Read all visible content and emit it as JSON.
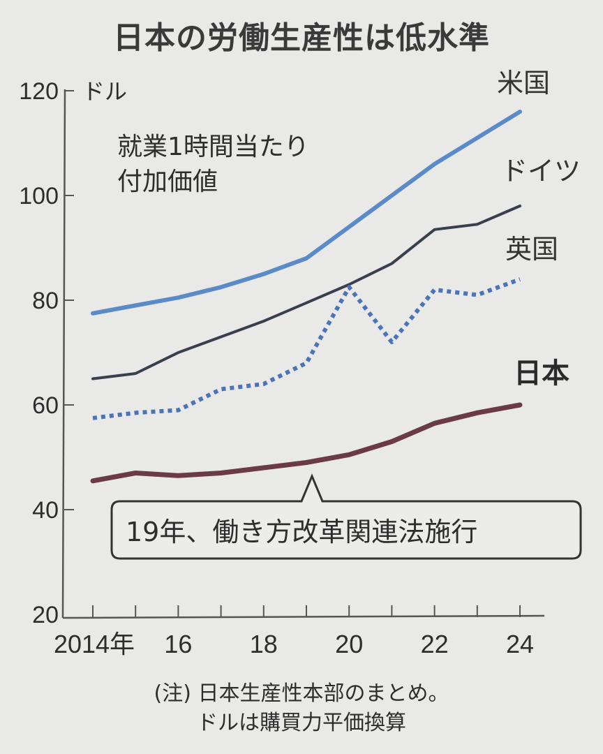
{
  "title": "日本の労働生産性は低水準",
  "description_lines": [
    "就業1時間当たり",
    "付加価値"
  ],
  "unit": "ドル",
  "annotation": "19年、働き方改革関連法施行",
  "notes": [
    "(注) 日本生産性本部のまとめ。",
    "ドルは購買力平価換算"
  ],
  "series_labels": {
    "us": "米国",
    "de": "ドイツ",
    "uk": "英国",
    "jp": "日本"
  },
  "colors": {
    "us": "#5b8ac9",
    "de": "#3a3f4e",
    "uk": "#4a73b8",
    "jp": "#6b3a48"
  },
  "chart_data": {
    "type": "line",
    "title": "日本の労働生産性は低水準",
    "subtitle": "就業1時間当たり付加価値",
    "xlabel": "",
    "ylabel": "ドル",
    "x": [
      2014,
      2015,
      2016,
      2017,
      2018,
      2019,
      2020,
      2021,
      2022,
      2023,
      2024
    ],
    "x_tick_labels": [
      "2014年",
      "16",
      "18",
      "20",
      "22",
      "24"
    ],
    "y_ticks": [
      20,
      40,
      60,
      80,
      100,
      120
    ],
    "ylim": [
      20,
      120
    ],
    "grid": false,
    "legend_position": "inline-right",
    "series": [
      {
        "name": "米国",
        "style": "solid",
        "values": [
          77.5,
          79,
          80.5,
          82.5,
          85,
          88,
          94,
          100,
          106,
          111,
          116
        ]
      },
      {
        "name": "ドイツ",
        "style": "solid",
        "values": [
          65,
          66,
          70,
          73,
          76,
          79.5,
          83,
          87,
          93.5,
          94.5,
          98
        ]
      },
      {
        "name": "英国",
        "style": "dotted",
        "values": [
          57.5,
          58.5,
          59,
          63,
          64,
          68,
          82.5,
          72,
          82,
          81,
          84
        ]
      },
      {
        "name": "日本",
        "style": "solid-bold",
        "values": [
          45.5,
          47,
          46.5,
          47,
          48,
          49,
          50.5,
          53,
          56.5,
          58.5,
          60
        ]
      }
    ],
    "annotations": [
      {
        "x": 2019,
        "text": "19年、働き方改革関連法施行"
      }
    ],
    "source_note": "(注) 日本生産性本部のまとめ。ドルは購買力平価換算"
  }
}
